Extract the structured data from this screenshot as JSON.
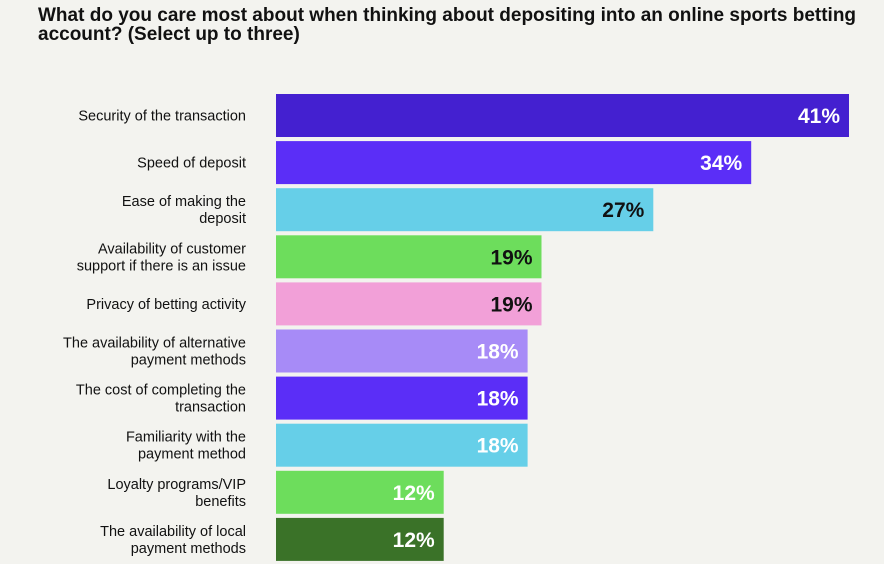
{
  "chart_data": {
    "type": "bar",
    "orientation": "horizontal",
    "title": "What do you care most about when thinking about depositing into an online sports betting account? (Select up to three)",
    "xlabel": "",
    "ylabel": "",
    "xlim": [
      0,
      41
    ],
    "grid": false,
    "categories": [
      [
        "Security of the transaction"
      ],
      [
        "Speed of deposit"
      ],
      [
        "Ease of making the",
        "deposit"
      ],
      [
        "Availability of customer",
        "support if there is an issue"
      ],
      [
        "Privacy of betting activity"
      ],
      [
        "The availability of alternative",
        "payment methods"
      ],
      [
        "The cost of completing the",
        "transaction"
      ],
      [
        "Familiarity with the",
        "payment method"
      ],
      [
        "Loyalty programs/VIP",
        "benefits"
      ],
      [
        "The availability of local",
        "payment methods"
      ]
    ],
    "values": [
      41,
      34,
      27,
      19,
      19,
      18,
      18,
      18,
      12,
      12
    ],
    "value_labels": [
      "41%",
      "34%",
      "27%",
      "19%",
      "19%",
      "18%",
      "18%",
      "18%",
      "12%",
      "12%"
    ],
    "colors": [
      "#4420d0",
      "#5b2ef7",
      "#66cfe8",
      "#6ddd5c",
      "#f2a0d8",
      "#a78bf7",
      "#5b2ef7",
      "#66cfe8",
      "#6ddd5c",
      "#3a7228"
    ],
    "label_colors": [
      "#ffffff",
      "#ffffff",
      "#111111",
      "#111111",
      "#111111",
      "#ffffff",
      "#ffffff",
      "#ffffff",
      "#ffffff",
      "#ffffff"
    ]
  }
}
